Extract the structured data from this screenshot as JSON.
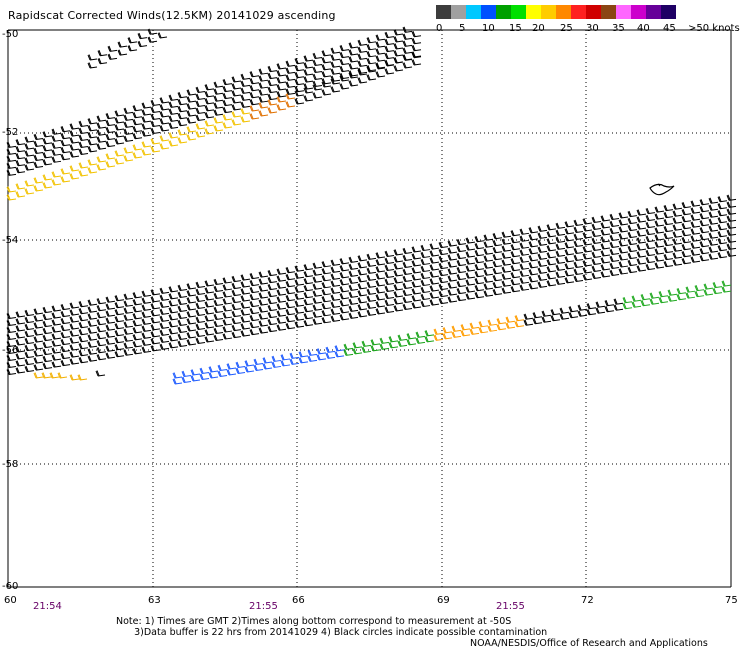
{
  "title": "Rapidscat Corrected Winds(12.5KM) 20141029 ascending",
  "legend": {
    "labels": [
      "0",
      "5",
      "10",
      "15",
      "20",
      "25",
      "30",
      "35",
      "40",
      "45",
      ">50 knots"
    ],
    "colors": [
      "#3c3c3c",
      "#a0a0a0",
      "#00c8ff",
      "#0050ff",
      "#00a000",
      "#00e000",
      "#ffff00",
      "#ffcc00",
      "#ff8800",
      "#ff2020",
      "#d00000",
      "#8b4513",
      "#ff66ff",
      "#cc00cc",
      "#660099",
      "#1e0064"
    ]
  },
  "map": {
    "lat_labels": [
      "-50",
      "-52",
      "-54",
      "-56",
      "-58",
      "-60"
    ],
    "lon_labels": [
      "60",
      "63",
      "66",
      "69",
      "72",
      "75"
    ],
    "time_labels": [
      "21:54",
      "21:55",
      "21:55"
    ]
  },
  "notes": {
    "line1": "Note: 1) Times are GMT 2)Times along bottom correspond to measurement at -50S",
    "line2": "      3)Data buffer is 22 hrs from 20141029 4) Black circles indicate possible contamination"
  },
  "credit": "NOAA/NESDIS/Office of Research and Applications"
}
